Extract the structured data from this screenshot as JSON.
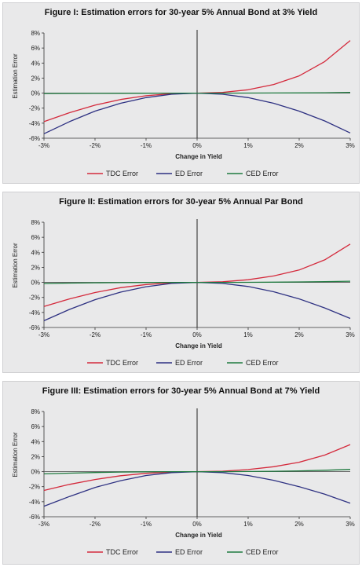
{
  "chart_data": [
    {
      "type": "line",
      "title": "Figure I: Estimation errors for 30-year 5% Annual Bond at 3% Yield",
      "xlabel": "Change in Yield",
      "ylabel": "Estimation Error",
      "x_ticks": [
        "-3%",
        "-2%",
        "-1%",
        "0%",
        "1%",
        "2%",
        "3%"
      ],
      "y_ticks": [
        "8%",
        "6%",
        "4%",
        "2%",
        "0%",
        "-2%",
        "-4%",
        "-6%"
      ],
      "xlim": [
        -3,
        3
      ],
      "ylim": [
        -6,
        8
      ],
      "x": [
        -3,
        -2.5,
        -2,
        -1.5,
        -1,
        -0.5,
        0,
        0.5,
        1,
        1.5,
        2,
        2.5,
        3
      ],
      "series": [
        {
          "name": "TDC Error",
          "color": "#d42a3c",
          "values": [
            -3.8,
            -2.6,
            -1.6,
            -0.85,
            -0.35,
            -0.08,
            0,
            0.1,
            0.45,
            1.15,
            2.3,
            4.2,
            7.0
          ]
        },
        {
          "name": "ED Error",
          "color": "#2e3182",
          "values": [
            -5.4,
            -3.8,
            -2.4,
            -1.35,
            -0.6,
            -0.15,
            0,
            -0.15,
            -0.6,
            -1.35,
            -2.4,
            -3.7,
            -5.3
          ]
        },
        {
          "name": "CED Error",
          "color": "#1f7a3f",
          "values": [
            -0.05,
            -0.04,
            -0.03,
            -0.02,
            -0.01,
            0,
            0,
            0,
            0.01,
            0.02,
            0.03,
            0.05,
            0.1
          ]
        }
      ],
      "legend": "bottom",
      "grid": false
    },
    {
      "type": "line",
      "title": "Figure II: Estimation errors for 30-year 5% Annual Par Bond",
      "xlabel": "Change in Yield",
      "ylabel": "Estimation Error",
      "x_ticks": [
        "-3%",
        "-2%",
        "-1%",
        "0%",
        "1%",
        "2%",
        "3%"
      ],
      "y_ticks": [
        "8%",
        "6%",
        "4%",
        "2%",
        "0%",
        "-2%",
        "-4%",
        "-6%"
      ],
      "xlim": [
        -3,
        3
      ],
      "ylim": [
        -6,
        8
      ],
      "x": [
        -3,
        -2.5,
        -2,
        -1.5,
        -1,
        -0.5,
        0,
        0.5,
        1,
        1.5,
        2,
        2.5,
        3
      ],
      "series": [
        {
          "name": "TDC Error",
          "color": "#d42a3c",
          "values": [
            -3.2,
            -2.2,
            -1.35,
            -0.7,
            -0.28,
            -0.06,
            0,
            0.08,
            0.35,
            0.85,
            1.65,
            3.0,
            5.1
          ]
        },
        {
          "name": "ED Error",
          "color": "#2e3182",
          "values": [
            -5.1,
            -3.6,
            -2.3,
            -1.3,
            -0.58,
            -0.14,
            0,
            -0.14,
            -0.55,
            -1.25,
            -2.2,
            -3.4,
            -4.8
          ]
        },
        {
          "name": "CED Error",
          "color": "#1f7a3f",
          "values": [
            -0.15,
            -0.1,
            -0.06,
            -0.03,
            -0.01,
            0,
            0,
            0,
            0.01,
            0.03,
            0.06,
            0.1,
            0.15
          ]
        }
      ],
      "legend": "bottom",
      "grid": false
    },
    {
      "type": "line",
      "title": "Figure III: Estimation errors for 30-year 5% Annual Bond at 7% Yield",
      "xlabel": "Change in Yield",
      "ylabel": "Estimation Error",
      "x_ticks": [
        "-3%",
        "-2%",
        "-1%",
        "0%",
        "1%",
        "2%",
        "3%"
      ],
      "y_ticks": [
        "8%",
        "6%",
        "4%",
        "2%",
        "0%",
        "-2%",
        "-4%",
        "-6%"
      ],
      "xlim": [
        -3,
        3
      ],
      "ylim": [
        -6,
        8
      ],
      "x": [
        -3,
        -2.5,
        -2,
        -1.5,
        -1,
        -0.5,
        0,
        0.5,
        1,
        1.5,
        2,
        2.5,
        3
      ],
      "series": [
        {
          "name": "TDC Error",
          "color": "#d42a3c",
          "values": [
            -2.5,
            -1.7,
            -1.05,
            -0.55,
            -0.22,
            -0.05,
            0,
            0.06,
            0.28,
            0.65,
            1.25,
            2.2,
            3.6
          ]
        },
        {
          "name": "ED Error",
          "color": "#2e3182",
          "values": [
            -4.6,
            -3.3,
            -2.1,
            -1.2,
            -0.52,
            -0.13,
            0,
            -0.13,
            -0.52,
            -1.15,
            -2.0,
            -3.0,
            -4.2
          ]
        },
        {
          "name": "CED Error",
          "color": "#1f7a3f",
          "values": [
            -0.3,
            -0.2,
            -0.12,
            -0.06,
            -0.02,
            0,
            0,
            0,
            0.02,
            0.05,
            0.1,
            0.18,
            0.3
          ]
        }
      ],
      "legend": "bottom",
      "grid": false
    }
  ]
}
